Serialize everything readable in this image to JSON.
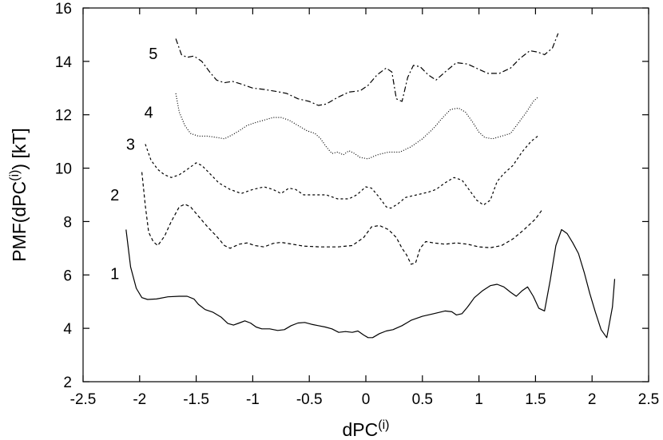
{
  "chart_data": {
    "type": "line",
    "xlabel": "dPC",
    "xlabel_sup": "(i)",
    "ylabel": "PMF(dPC",
    "ylabel_sup": "(i)",
    "ylabel_suffix": ")  [kT]",
    "xlim": [
      -2.5,
      2.5
    ],
    "ylim": [
      2,
      16
    ],
    "xticks": [
      -2.5,
      -2,
      -1.5,
      -1,
      -0.5,
      0,
      0.5,
      1,
      1.5,
      2,
      2.5
    ],
    "xtick_labels": [
      "-2.5",
      "-2",
      "-1.5",
      "-1",
      "-0.5",
      "0",
      "0.5",
      "1",
      "1.5",
      "2",
      "2.5"
    ],
    "yticks": [
      2,
      4,
      6,
      8,
      10,
      12,
      14,
      16
    ],
    "ytick_labels": [
      "2",
      "4",
      "6",
      "8",
      "10",
      "12",
      "14",
      "16"
    ],
    "grid": false,
    "legend": "none",
    "series": [
      {
        "label": "1",
        "dash": "solid",
        "label_pos": [
          -2.22,
          6.05
        ],
        "points": [
          [
            -2.12,
            7.7
          ],
          [
            -2.08,
            6.3
          ],
          [
            -2.03,
            5.5
          ],
          [
            -1.98,
            5.15
          ],
          [
            -1.93,
            5.08
          ],
          [
            -1.85,
            5.1
          ],
          [
            -1.75,
            5.18
          ],
          [
            -1.65,
            5.2
          ],
          [
            -1.58,
            5.2
          ],
          [
            -1.52,
            5.1
          ],
          [
            -1.48,
            4.9
          ],
          [
            -1.42,
            4.7
          ],
          [
            -1.35,
            4.6
          ],
          [
            -1.28,
            4.42
          ],
          [
            -1.22,
            4.18
          ],
          [
            -1.17,
            4.12
          ],
          [
            -1.12,
            4.2
          ],
          [
            -1.07,
            4.28
          ],
          [
            -1.02,
            4.2
          ],
          [
            -0.97,
            4.05
          ],
          [
            -0.92,
            3.98
          ],
          [
            -0.85,
            3.98
          ],
          [
            -0.78,
            3.92
          ],
          [
            -0.72,
            3.95
          ],
          [
            -0.66,
            4.1
          ],
          [
            -0.6,
            4.2
          ],
          [
            -0.54,
            4.22
          ],
          [
            -0.48,
            4.15
          ],
          [
            -0.42,
            4.1
          ],
          [
            -0.36,
            4.05
          ],
          [
            -0.3,
            3.98
          ],
          [
            -0.24,
            3.85
          ],
          [
            -0.18,
            3.88
          ],
          [
            -0.12,
            3.85
          ],
          [
            -0.07,
            3.9
          ],
          [
            -0.02,
            3.75
          ],
          [
            0.02,
            3.65
          ],
          [
            0.06,
            3.65
          ],
          [
            0.12,
            3.8
          ],
          [
            0.18,
            3.9
          ],
          [
            0.24,
            3.95
          ],
          [
            0.32,
            4.1
          ],
          [
            0.4,
            4.3
          ],
          [
            0.5,
            4.45
          ],
          [
            0.6,
            4.55
          ],
          [
            0.7,
            4.65
          ],
          [
            0.76,
            4.62
          ],
          [
            0.8,
            4.5
          ],
          [
            0.85,
            4.55
          ],
          [
            0.9,
            4.8
          ],
          [
            0.96,
            5.15
          ],
          [
            1.03,
            5.4
          ],
          [
            1.1,
            5.6
          ],
          [
            1.16,
            5.65
          ],
          [
            1.22,
            5.55
          ],
          [
            1.28,
            5.35
          ],
          [
            1.33,
            5.2
          ],
          [
            1.38,
            5.4
          ],
          [
            1.43,
            5.55
          ],
          [
            1.48,
            5.2
          ],
          [
            1.53,
            4.75
          ],
          [
            1.58,
            4.65
          ],
          [
            1.63,
            5.8
          ],
          [
            1.68,
            7.1
          ],
          [
            1.73,
            7.7
          ],
          [
            1.78,
            7.55
          ],
          [
            1.83,
            7.2
          ],
          [
            1.88,
            6.8
          ],
          [
            1.93,
            6.1
          ],
          [
            1.98,
            5.3
          ],
          [
            2.03,
            4.6
          ],
          [
            2.08,
            3.95
          ],
          [
            2.13,
            3.65
          ],
          [
            2.18,
            4.8
          ],
          [
            2.2,
            5.85
          ]
        ]
      },
      {
        "label": "2",
        "dash": "4,3",
        "label_pos": [
          -2.22,
          9.0
        ],
        "points": [
          [
            -1.98,
            9.85
          ],
          [
            -1.95,
            8.6
          ],
          [
            -1.92,
            7.6
          ],
          [
            -1.88,
            7.25
          ],
          [
            -1.84,
            7.1
          ],
          [
            -1.78,
            7.45
          ],
          [
            -1.72,
            8.0
          ],
          [
            -1.65,
            8.55
          ],
          [
            -1.6,
            8.65
          ],
          [
            -1.55,
            8.55
          ],
          [
            -1.48,
            8.2
          ],
          [
            -1.4,
            7.8
          ],
          [
            -1.32,
            7.45
          ],
          [
            -1.25,
            7.1
          ],
          [
            -1.2,
            7.0
          ],
          [
            -1.12,
            7.15
          ],
          [
            -1.05,
            7.2
          ],
          [
            -0.98,
            7.1
          ],
          [
            -0.9,
            7.05
          ],
          [
            -0.82,
            7.18
          ],
          [
            -0.75,
            7.22
          ],
          [
            -0.65,
            7.15
          ],
          [
            -0.55,
            7.08
          ],
          [
            -0.4,
            7.05
          ],
          [
            -0.25,
            7.05
          ],
          [
            -0.12,
            7.1
          ],
          [
            -0.02,
            7.4
          ],
          [
            0.05,
            7.8
          ],
          [
            0.12,
            7.85
          ],
          [
            0.2,
            7.7
          ],
          [
            0.27,
            7.4
          ],
          [
            0.32,
            7.0
          ],
          [
            0.36,
            6.75
          ],
          [
            0.4,
            6.4
          ],
          [
            0.44,
            6.45
          ],
          [
            0.48,
            7.0
          ],
          [
            0.53,
            7.25
          ],
          [
            0.6,
            7.2
          ],
          [
            0.7,
            7.15
          ],
          [
            0.8,
            7.2
          ],
          [
            0.9,
            7.15
          ],
          [
            1.0,
            7.05
          ],
          [
            1.1,
            7.02
          ],
          [
            1.2,
            7.1
          ],
          [
            1.3,
            7.35
          ],
          [
            1.4,
            7.7
          ],
          [
            1.5,
            8.1
          ],
          [
            1.56,
            8.45
          ]
        ]
      },
      {
        "label": "3",
        "dash": "3,3",
        "label_pos": [
          -2.08,
          10.9
        ],
        "points": [
          [
            -1.95,
            10.9
          ],
          [
            -1.9,
            10.3
          ],
          [
            -1.84,
            9.95
          ],
          [
            -1.78,
            9.75
          ],
          [
            -1.72,
            9.65
          ],
          [
            -1.65,
            9.75
          ],
          [
            -1.58,
            9.95
          ],
          [
            -1.5,
            10.2
          ],
          [
            -1.45,
            10.1
          ],
          [
            -1.38,
            9.8
          ],
          [
            -1.3,
            9.45
          ],
          [
            -1.2,
            9.2
          ],
          [
            -1.1,
            9.05
          ],
          [
            -1.0,
            9.2
          ],
          [
            -0.9,
            9.3
          ],
          [
            -0.82,
            9.2
          ],
          [
            -0.75,
            9.05
          ],
          [
            -0.68,
            9.25
          ],
          [
            -0.62,
            9.2
          ],
          [
            -0.55,
            9.0
          ],
          [
            -0.45,
            9.0
          ],
          [
            -0.35,
            9.0
          ],
          [
            -0.25,
            8.85
          ],
          [
            -0.15,
            8.85
          ],
          [
            -0.08,
            9.0
          ],
          [
            0.0,
            9.3
          ],
          [
            0.05,
            9.25
          ],
          [
            0.12,
            8.9
          ],
          [
            0.18,
            8.55
          ],
          [
            0.22,
            8.5
          ],
          [
            0.28,
            8.65
          ],
          [
            0.35,
            8.9
          ],
          [
            0.45,
            9.0
          ],
          [
            0.55,
            9.1
          ],
          [
            0.62,
            9.2
          ],
          [
            0.7,
            9.45
          ],
          [
            0.78,
            9.65
          ],
          [
            0.85,
            9.55
          ],
          [
            0.92,
            9.15
          ],
          [
            0.98,
            8.8
          ],
          [
            1.04,
            8.62
          ],
          [
            1.1,
            8.8
          ],
          [
            1.16,
            9.5
          ],
          [
            1.22,
            9.8
          ],
          [
            1.3,
            10.1
          ],
          [
            1.38,
            10.6
          ],
          [
            1.46,
            11.0
          ],
          [
            1.52,
            11.2
          ]
        ]
      },
      {
        "label": "4",
        "dash": "1,2",
        "label_pos": [
          -1.92,
          12.1
        ],
        "points": [
          [
            -1.68,
            12.8
          ],
          [
            -1.65,
            12.1
          ],
          [
            -1.6,
            11.6
          ],
          [
            -1.55,
            11.3
          ],
          [
            -1.48,
            11.2
          ],
          [
            -1.4,
            11.2
          ],
          [
            -1.32,
            11.15
          ],
          [
            -1.25,
            11.1
          ],
          [
            -1.18,
            11.25
          ],
          [
            -1.12,
            11.4
          ],
          [
            -1.05,
            11.6
          ],
          [
            -0.98,
            11.7
          ],
          [
            -0.9,
            11.8
          ],
          [
            -0.82,
            11.9
          ],
          [
            -0.75,
            11.9
          ],
          [
            -0.68,
            11.8
          ],
          [
            -0.6,
            11.6
          ],
          [
            -0.52,
            11.4
          ],
          [
            -0.45,
            11.3
          ],
          [
            -0.4,
            11.1
          ],
          [
            -0.35,
            10.8
          ],
          [
            -0.3,
            10.55
          ],
          [
            -0.25,
            10.6
          ],
          [
            -0.2,
            10.5
          ],
          [
            -0.15,
            10.65
          ],
          [
            -0.1,
            10.55
          ],
          [
            -0.05,
            10.4
          ],
          [
            0.02,
            10.35
          ],
          [
            0.1,
            10.5
          ],
          [
            0.2,
            10.6
          ],
          [
            0.3,
            10.6
          ],
          [
            0.4,
            10.8
          ],
          [
            0.5,
            11.1
          ],
          [
            0.6,
            11.5
          ],
          [
            0.68,
            11.9
          ],
          [
            0.75,
            12.2
          ],
          [
            0.82,
            12.25
          ],
          [
            0.88,
            12.1
          ],
          [
            0.94,
            11.75
          ],
          [
            1.0,
            11.35
          ],
          [
            1.05,
            11.15
          ],
          [
            1.12,
            11.1
          ],
          [
            1.2,
            11.2
          ],
          [
            1.28,
            11.3
          ],
          [
            1.35,
            11.7
          ],
          [
            1.42,
            12.1
          ],
          [
            1.48,
            12.5
          ],
          [
            1.52,
            12.65
          ]
        ]
      },
      {
        "label": "5",
        "dash": "7,3,2,3",
        "label_pos": [
          -1.88,
          14.3
        ],
        "points": [
          [
            -1.68,
            14.85
          ],
          [
            -1.63,
            14.25
          ],
          [
            -1.58,
            14.15
          ],
          [
            -1.52,
            14.2
          ],
          [
            -1.45,
            14.0
          ],
          [
            -1.38,
            13.6
          ],
          [
            -1.32,
            13.3
          ],
          [
            -1.25,
            13.2
          ],
          [
            -1.18,
            13.25
          ],
          [
            -1.1,
            13.15
          ],
          [
            -1.0,
            13.0
          ],
          [
            -0.9,
            12.95
          ],
          [
            -0.8,
            12.88
          ],
          [
            -0.7,
            12.8
          ],
          [
            -0.6,
            12.6
          ],
          [
            -0.5,
            12.5
          ],
          [
            -0.42,
            12.35
          ],
          [
            -0.35,
            12.4
          ],
          [
            -0.25,
            12.65
          ],
          [
            -0.15,
            12.85
          ],
          [
            -0.05,
            12.9
          ],
          [
            0.02,
            13.1
          ],
          [
            0.1,
            13.5
          ],
          [
            0.18,
            13.75
          ],
          [
            0.23,
            13.6
          ],
          [
            0.27,
            12.6
          ],
          [
            0.32,
            12.5
          ],
          [
            0.37,
            13.4
          ],
          [
            0.42,
            13.85
          ],
          [
            0.48,
            13.8
          ],
          [
            0.55,
            13.5
          ],
          [
            0.62,
            13.3
          ],
          [
            0.7,
            13.6
          ],
          [
            0.8,
            13.95
          ],
          [
            0.9,
            13.9
          ],
          [
            1.0,
            13.7
          ],
          [
            1.08,
            13.55
          ],
          [
            1.18,
            13.55
          ],
          [
            1.28,
            13.75
          ],
          [
            1.36,
            14.1
          ],
          [
            1.45,
            14.4
          ],
          [
            1.52,
            14.35
          ],
          [
            1.58,
            14.25
          ],
          [
            1.65,
            14.5
          ],
          [
            1.7,
            15.05
          ]
        ]
      }
    ]
  }
}
